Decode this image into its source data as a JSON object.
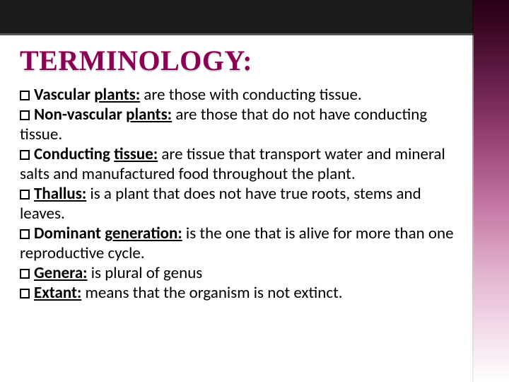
{
  "title": "TERMINOLOGY:",
  "accent_gradient_stops": [
    "#2a0015",
    "#3d0825",
    "#5c1a42",
    "#7d2d5c",
    "#a04d7d",
    "#c77ba6",
    "#e3b5d0",
    "#f5e0ed",
    "#ffffff"
  ],
  "title_color": "#8b0052",
  "top_band_color": "#1a1a1a",
  "body_font_size": 23,
  "title_font_size": 40,
  "items": [
    {
      "term_plain": "Vascular ",
      "term_under": "plants:",
      "def": " are those with conducting tissue."
    },
    {
      "term_plain": "Non-vascular ",
      "term_under": "plants:",
      "def": " are those that do not have conducting tissue."
    },
    {
      "term_plain": "Conducting ",
      "term_under": "tissue:",
      "def": " are tissue that transport water and mineral salts and manufactured food throughout the plant."
    },
    {
      "term_plain": "",
      "term_under": "Thallus:",
      "def": " is a plant that does not have true roots, stems and leaves."
    },
    {
      "term_plain": "Dominant ",
      "term_under": "generation:",
      "def": " is the one that is alive for more than one reproductive cycle."
    },
    {
      "term_plain": "",
      "term_under": "Genera:",
      "def": " is plural of genus"
    },
    {
      "term_plain": "",
      "term_under": "Extant:",
      "def": " means that the organism is not extinct."
    }
  ]
}
